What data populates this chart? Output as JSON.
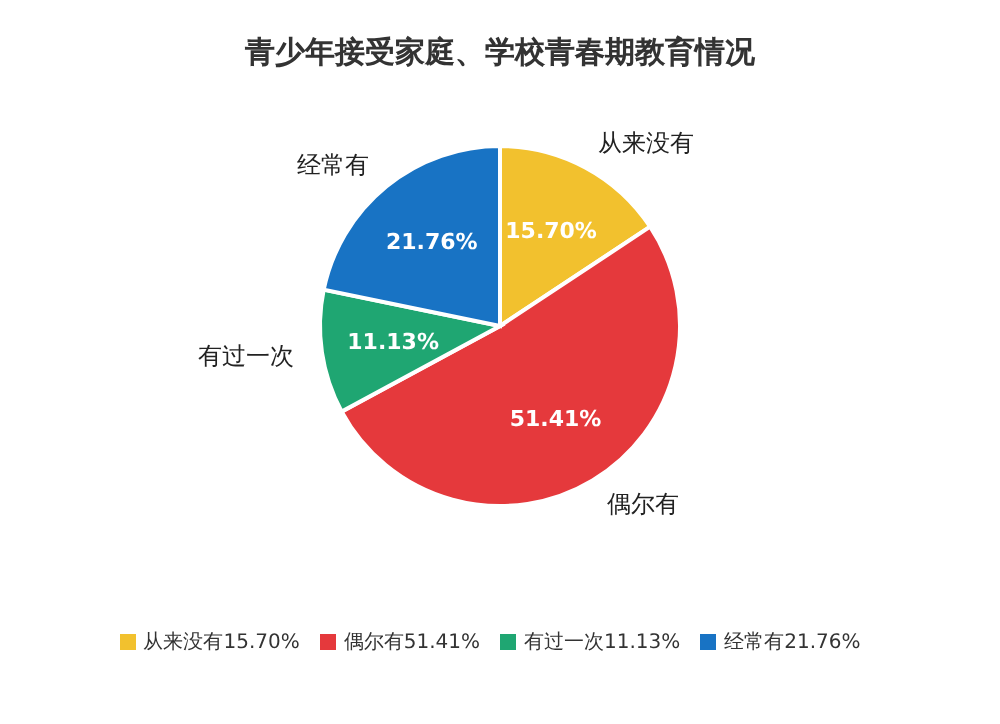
{
  "chart_data": {
    "type": "pie",
    "title": "青少年接受家庭、学校青春期教育情况",
    "categories": [
      "从来没有",
      "偶尔有",
      "有过一次",
      "经常有"
    ],
    "values": [
      15.7,
      51.41,
      11.13,
      21.76
    ],
    "value_labels": [
      "15.70%",
      "51.41%",
      "11.13%",
      "21.76%"
    ],
    "colors": [
      "#f2c12e",
      "#e5393c",
      "#1fa672",
      "#1873c4"
    ],
    "data_labels": true,
    "legend": "bottom"
  }
}
